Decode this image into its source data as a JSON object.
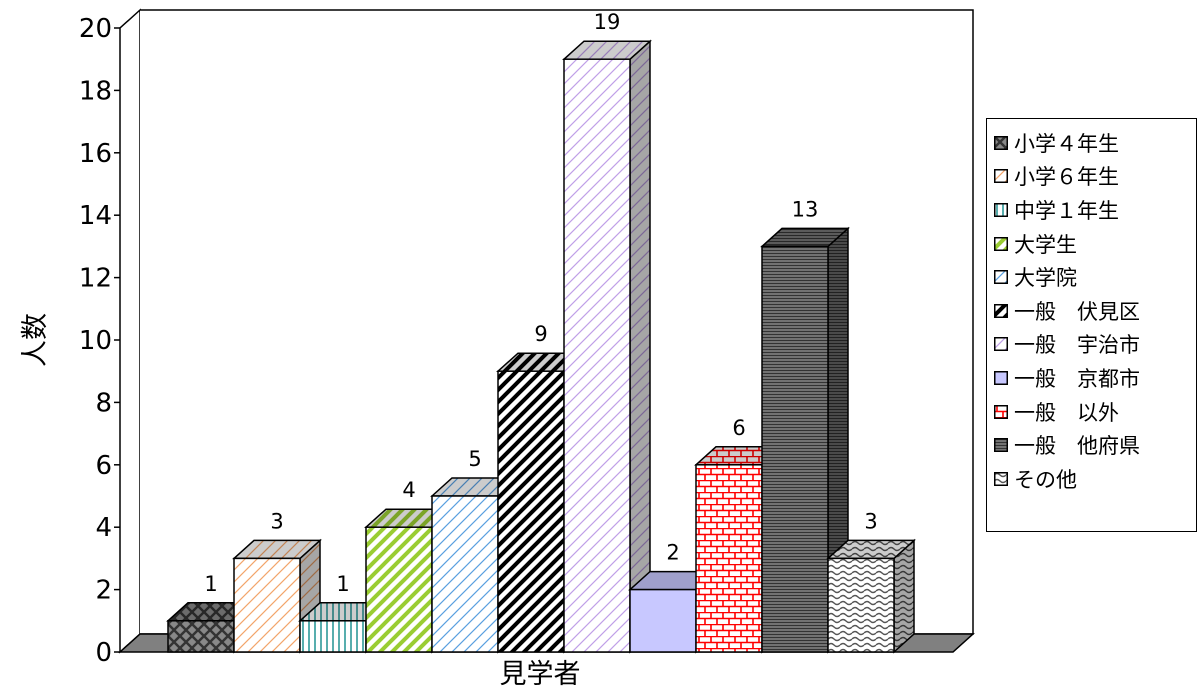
{
  "chart_data": {
    "type": "bar",
    "style": "3d-clustered",
    "title": "",
    "xlabel": "見学者",
    "ylabel": "人数",
    "ylim": [
      0,
      20
    ],
    "y_ticks": [
      "0",
      "2",
      "4",
      "6",
      "8",
      "10",
      "12",
      "14",
      "16",
      "18",
      "20"
    ],
    "grid": false,
    "legend_position": "right",
    "series": [
      {
        "name": "小学４年生",
        "values": [
          1
        ],
        "color": "#333333",
        "pattern": "checker"
      },
      {
        "name": "小学６年生",
        "values": [
          3
        ],
        "color": "#f3a56b",
        "pattern": "diag-light"
      },
      {
        "name": "中学１年生",
        "values": [
          1
        ],
        "color": "#2e9a9a",
        "pattern": "vertical"
      },
      {
        "name": "大学生",
        "values": [
          4
        ],
        "color": "#9acd32",
        "pattern": "diag-wide"
      },
      {
        "name": "大学院",
        "values": [
          5
        ],
        "color": "#5aa0e0",
        "pattern": "diag-light"
      },
      {
        "name": "一般　伏見区",
        "values": [
          9
        ],
        "color": "#000000",
        "pattern": "diag-wide"
      },
      {
        "name": "一般　宇治市",
        "values": [
          19
        ],
        "color": "#c0a0e8",
        "pattern": "diag-light"
      },
      {
        "name": "一般　京都市",
        "values": [
          2
        ],
        "color": "#c8c8ff",
        "pattern": "solid"
      },
      {
        "name": "一般　以外",
        "values": [
          6
        ],
        "color": "#ff0000",
        "pattern": "brick"
      },
      {
        "name": "一般　他府県",
        "values": [
          13
        ],
        "color": "#333333",
        "pattern": "horizontal"
      },
      {
        "name": "その他",
        "values": [
          3
        ],
        "color": "#555555",
        "pattern": "wave"
      }
    ]
  }
}
